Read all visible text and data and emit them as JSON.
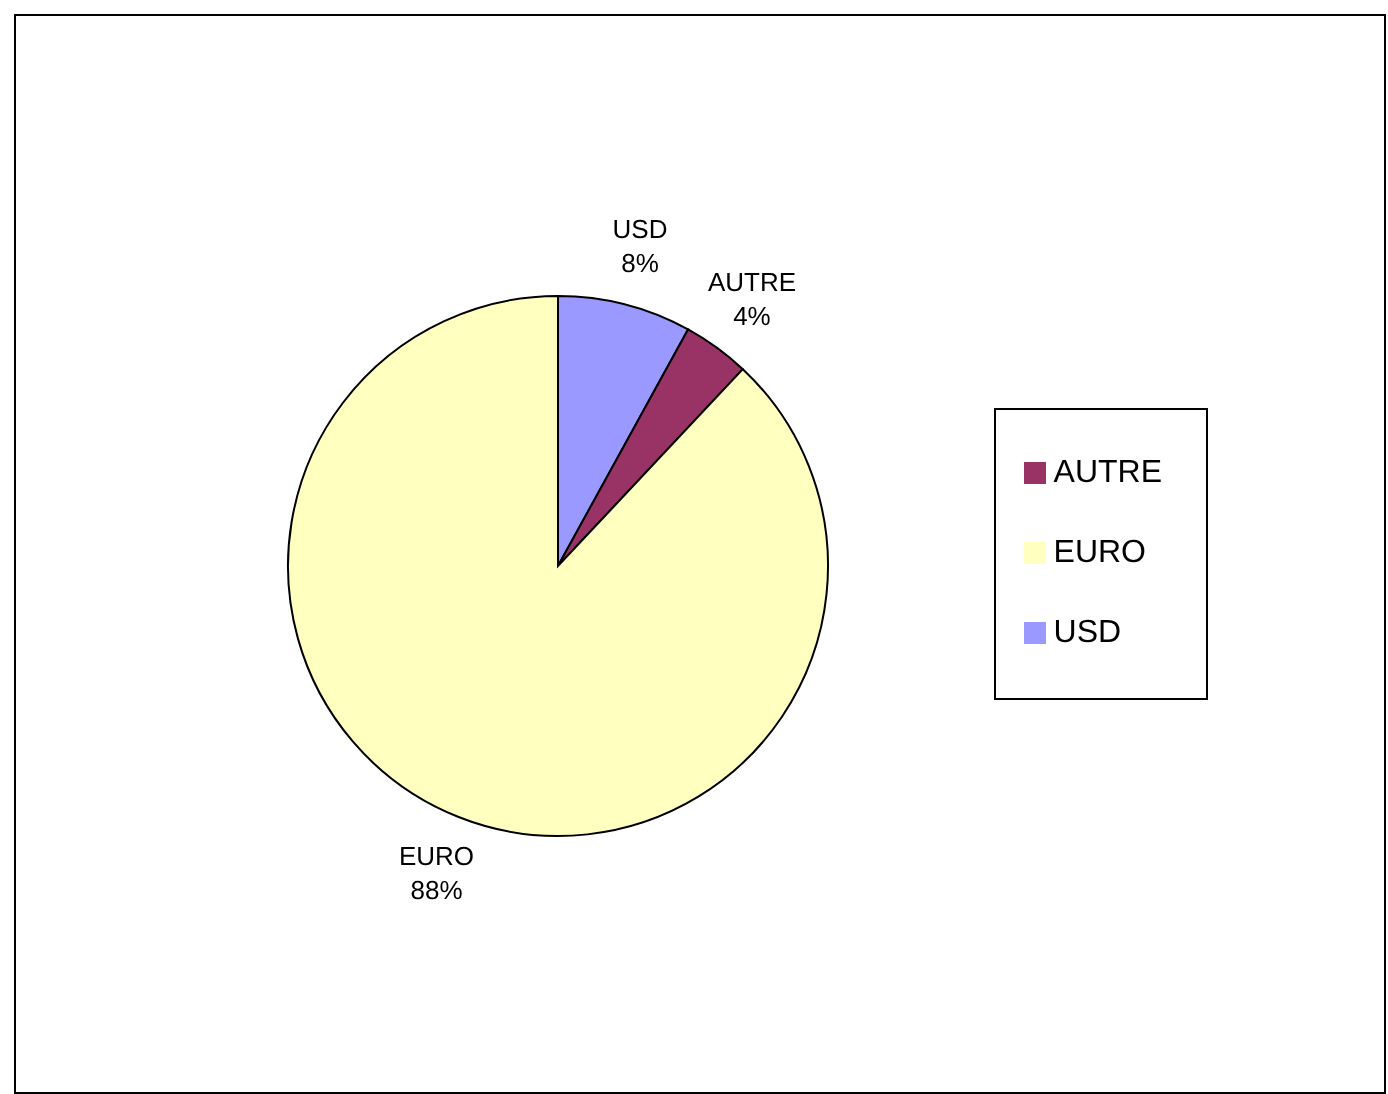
{
  "chart_data": {
    "type": "pie",
    "categories": [
      "USD",
      "AUTRE",
      "EURO"
    ],
    "values": [
      8,
      4,
      88
    ],
    "colors": [
      "#9999ff",
      "#993366",
      "#ffffc0"
    ],
    "value_labels": [
      "8%",
      "4%",
      "88%"
    ],
    "legend": "right"
  }
}
